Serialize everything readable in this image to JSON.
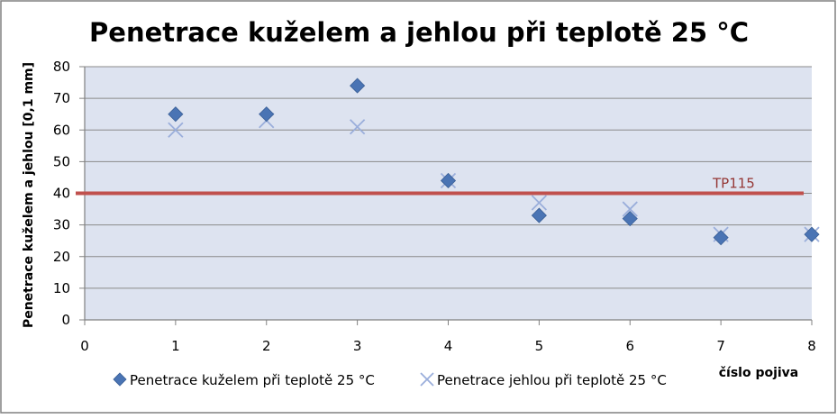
{
  "chart_data": {
    "type": "scatter",
    "title": "Penetrace kuželem a jehlou při teplotě 25 °C",
    "xlabel": "číslo pojiva",
    "ylabel": "Penetrace kuželem a jehlou [0,1 mm]",
    "xlim": [
      0,
      8
    ],
    "ylim": [
      0,
      80
    ],
    "xticks": [
      "0",
      "1",
      "2",
      "3",
      "4",
      "5",
      "6",
      "7",
      "8"
    ],
    "yticks": [
      "0",
      "10",
      "20",
      "30",
      "40",
      "50",
      "60",
      "70",
      "80"
    ],
    "grid": true,
    "legend_position": "bottom",
    "series": [
      {
        "name": "Penetrace kuželem při teplotě 25 °C",
        "marker": "diamond",
        "color": "#4a74b4",
        "x": [
          1,
          2,
          3,
          4,
          5,
          6,
          7,
          8
        ],
        "y": [
          65,
          65,
          74,
          44,
          33,
          32,
          26,
          27
        ]
      },
      {
        "name": "Penetrace jehlou při teplotě 25 °C",
        "marker": "x",
        "color": "#9aaedb",
        "x": [
          1,
          2,
          3,
          4,
          5,
          6,
          7,
          8
        ],
        "y": [
          60,
          63,
          61,
          44,
          37,
          35,
          27,
          27
        ]
      }
    ],
    "reference_line": {
      "label": "TP115",
      "y": 40,
      "color": "#c0504d"
    },
    "colors": {
      "plot_background": "#dde3f0",
      "grid": "#8a8a8a",
      "border": "#808080"
    }
  }
}
